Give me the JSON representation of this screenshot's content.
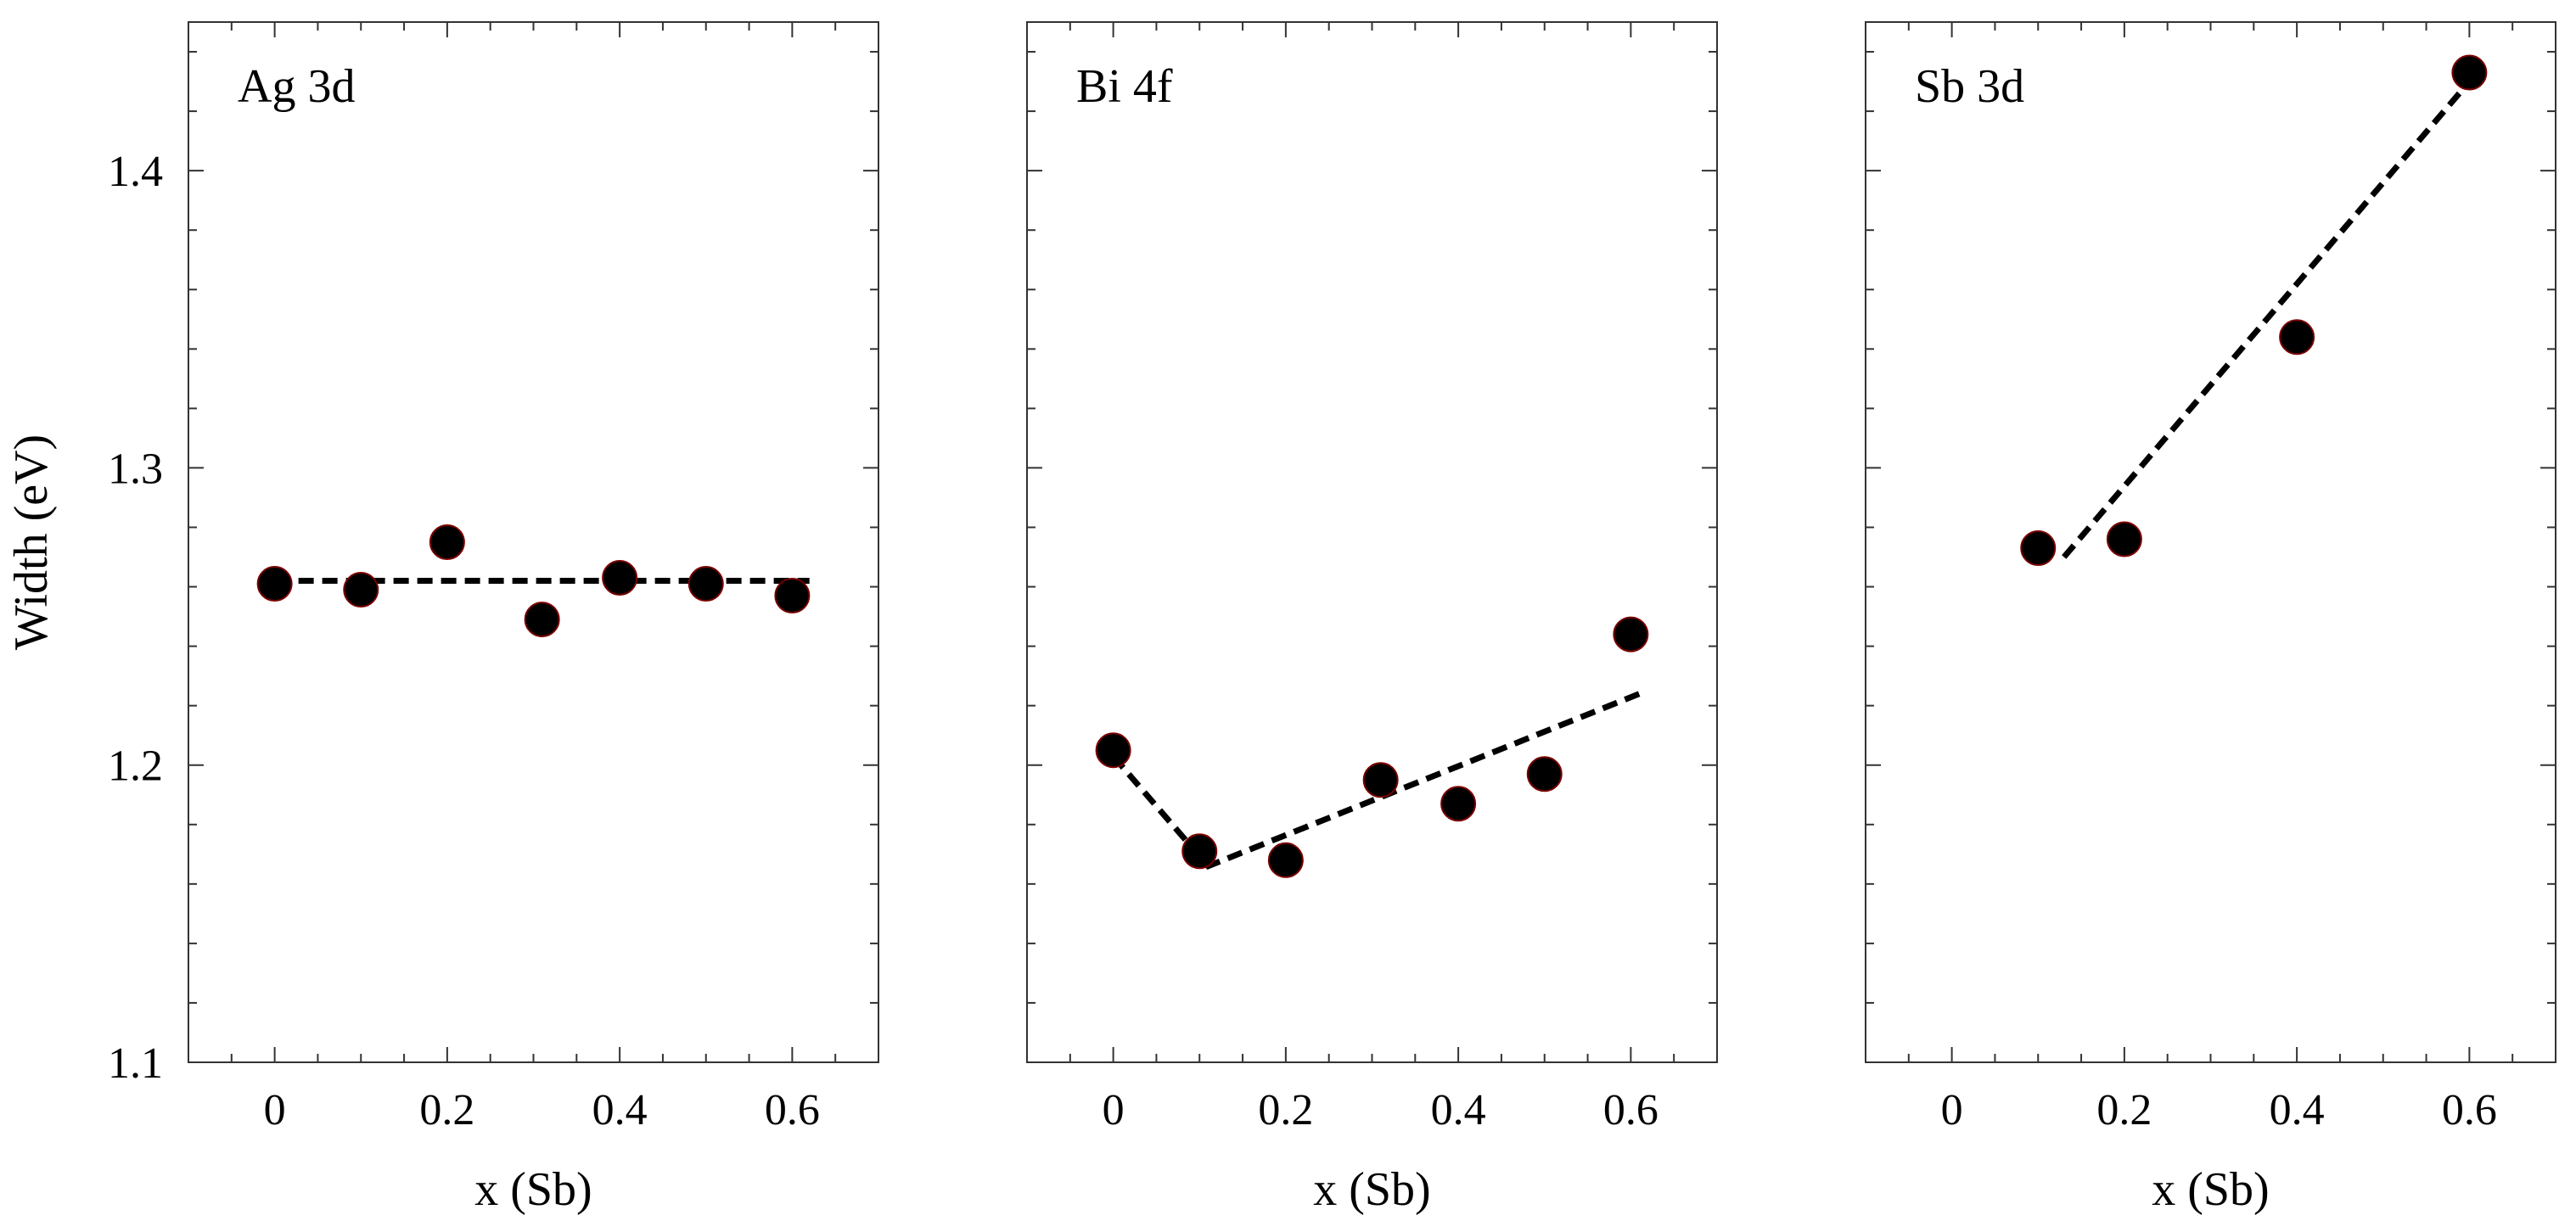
{
  "chart_data": [
    {
      "type": "scatter",
      "title": "Ag 3d",
      "xlabel": "x (Sb)",
      "ylabel": "Width (eV)",
      "xlim": [
        -0.1,
        0.7
      ],
      "ylim": [
        1.1,
        1.45
      ],
      "xticks": [
        "0",
        "0.2",
        "0.4",
        "0.6"
      ],
      "yticks": [
        "1.1",
        "1.2",
        "1.3",
        "1.4"
      ],
      "grid": false,
      "series": [
        {
          "x": [
            0,
            0.1,
            0.2,
            0.31,
            0.4,
            0.5,
            0.6
          ],
          "y": [
            1.261,
            1.259,
            1.275,
            1.249,
            1.263,
            1.261,
            1.257
          ]
        }
      ],
      "fit": {
        "style": "dashed",
        "x": [
          0,
          0.62
        ],
        "y": [
          1.262,
          1.262
        ]
      }
    },
    {
      "type": "scatter",
      "title": "Bi 4f",
      "xlabel": "x (Sb)",
      "ylabel": "",
      "xlim": [
        -0.1,
        0.7
      ],
      "ylim": [
        1.1,
        1.45
      ],
      "xticks": [
        "0",
        "0.2",
        "0.4",
        "0.6"
      ],
      "yticks": [],
      "grid": false,
      "series": [
        {
          "x": [
            0,
            0.1,
            0.2,
            0.31,
            0.4,
            0.5,
            0.6
          ],
          "y": [
            1.205,
            1.171,
            1.168,
            1.195,
            1.187,
            1.197,
            1.244
          ]
        }
      ],
      "fit": {
        "style": "dashed",
        "x": [
          0,
          0.11,
          0.61
        ],
        "y": [
          1.203,
          1.166,
          1.224
        ]
      }
    },
    {
      "type": "scatter",
      "title": "Sb 3d",
      "xlabel": "x (Sb)",
      "ylabel": "",
      "xlim": [
        -0.1,
        0.7
      ],
      "ylim": [
        1.1,
        1.45
      ],
      "xticks": [
        "0",
        "0.2",
        "0.4",
        "0.6"
      ],
      "yticks": [],
      "grid": false,
      "series": [
        {
          "x": [
            0.1,
            0.2,
            0.4,
            0.6
          ],
          "y": [
            1.273,
            1.276,
            1.344,
            1.433
          ]
        }
      ],
      "fit": {
        "style": "dashed",
        "x": [
          0.13,
          0.6
        ],
        "y": [
          1.27,
          1.43
        ]
      }
    }
  ],
  "colors": {
    "marker_fill": "#000000",
    "marker_edge": "#7a0000",
    "axes": "#333333",
    "fit_line": "#000000"
  }
}
